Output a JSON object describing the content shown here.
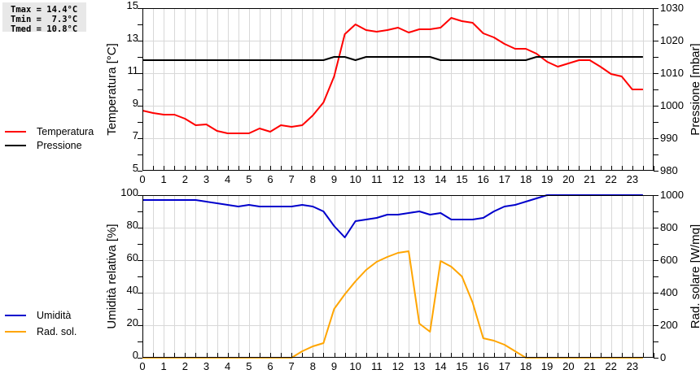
{
  "stats": {
    "tmax": "Tmax = 14.4°C",
    "tmin": "Tmin =  7.3°C",
    "tmed": "Tmed = 10.8°C"
  },
  "legend_top": [
    {
      "label": "Temperatura",
      "color": "#ff0000"
    },
    {
      "label": "Pressione",
      "color": "#000000"
    }
  ],
  "legend_bottom": [
    {
      "label": "Umidità",
      "color": "#0000cc"
    },
    {
      "label": "Rad. sol.",
      "color": "#ffa500"
    }
  ],
  "chart_data": [
    {
      "type": "line",
      "title": "",
      "xlabel": "",
      "ylabel": "Temperatura [°C]",
      "y2label": "Pressione [mbar]",
      "xlim": [
        0,
        24
      ],
      "ylim": [
        5,
        15
      ],
      "y2lim": [
        980,
        1030
      ],
      "x_ticks": [
        0,
        1,
        2,
        3,
        4,
        5,
        6,
        7,
        8,
        9,
        10,
        11,
        12,
        13,
        14,
        15,
        16,
        17,
        18,
        19,
        20,
        21,
        22,
        23
      ],
      "y_ticks": [
        5,
        7,
        9,
        11,
        13,
        15
      ],
      "y2_ticks": [
        980,
        990,
        1000,
        1010,
        1020,
        1030
      ],
      "grid": true,
      "legend_position": "left",
      "x": [
        0,
        0.5,
        1,
        1.5,
        2,
        2.5,
        3,
        3.5,
        4,
        4.5,
        5,
        5.5,
        6,
        6.5,
        7,
        7.5,
        8,
        8.5,
        9,
        9.5,
        10,
        10.5,
        11,
        11.5,
        12,
        12.5,
        13,
        13.5,
        14,
        14.5,
        15,
        15.5,
        16,
        16.5,
        17,
        17.5,
        18,
        18.5,
        19,
        19.5,
        20,
        20.5,
        21,
        21.5,
        22,
        22.5,
        23,
        23.5
      ],
      "series": [
        {
          "name": "Temperatura",
          "axis": "left",
          "color": "#ff0000",
          "values": [
            8.7,
            8.55,
            8.45,
            8.45,
            8.2,
            7.8,
            7.85,
            7.45,
            7.3,
            7.3,
            7.3,
            7.6,
            7.4,
            7.8,
            7.7,
            7.8,
            8.4,
            9.2,
            10.8,
            13.4,
            14.0,
            13.65,
            13.55,
            13.65,
            13.8,
            13.5,
            13.7,
            13.7,
            13.8,
            14.4,
            14.2,
            14.1,
            13.45,
            13.2,
            12.8,
            12.5,
            12.5,
            12.2,
            11.7,
            11.4,
            11.6,
            11.8,
            11.8,
            11.4,
            10.95,
            10.8,
            10.0,
            10.0
          ]
        },
        {
          "name": "Pressione",
          "axis": "right",
          "color": "#000000",
          "values": [
            1014,
            1014,
            1014,
            1014,
            1014,
            1014,
            1014,
            1014,
            1014,
            1014,
            1014,
            1014,
            1014,
            1014,
            1014,
            1014,
            1014,
            1014,
            1015,
            1015,
            1014,
            1015,
            1015,
            1015,
            1015,
            1015,
            1015,
            1015,
            1014,
            1014,
            1014,
            1014,
            1014,
            1014,
            1014,
            1014,
            1014,
            1015,
            1015,
            1015,
            1015,
            1015,
            1015,
            1015,
            1015,
            1015,
            1015,
            1015
          ]
        }
      ]
    },
    {
      "type": "line",
      "title": "",
      "xlabel": "",
      "ylabel": "Umidità relativa [%]",
      "y2label": "Rad. solare [W/mq]",
      "xlim": [
        0,
        24
      ],
      "ylim": [
        0,
        100
      ],
      "y2lim": [
        0,
        1000
      ],
      "x_ticks": [
        0,
        1,
        2,
        3,
        4,
        5,
        6,
        7,
        8,
        9,
        10,
        11,
        12,
        13,
        14,
        15,
        16,
        17,
        18,
        19,
        20,
        21,
        22,
        23
      ],
      "y_ticks": [
        0,
        20,
        40,
        60,
        80,
        100
      ],
      "y2_ticks": [
        0,
        200,
        400,
        600,
        800,
        1000
      ],
      "grid": true,
      "legend_position": "left",
      "x": [
        0,
        0.5,
        1,
        1.5,
        2,
        2.5,
        3,
        3.5,
        4,
        4.5,
        5,
        5.5,
        6,
        6.5,
        7,
        7.5,
        8,
        8.5,
        9,
        9.5,
        10,
        10.5,
        11,
        11.5,
        12,
        12.5,
        13,
        13.5,
        14,
        14.5,
        15,
        15.5,
        16,
        16.5,
        17,
        17.5,
        18,
        18.5,
        19,
        19.5,
        20,
        20.5,
        21,
        21.5,
        22,
        22.5,
        23,
        23.5
      ],
      "series": [
        {
          "name": "Umidità",
          "axis": "left",
          "color": "#0000cc",
          "values": [
            97,
            97,
            97,
            97,
            97,
            97,
            96,
            95,
            94,
            93,
            94,
            93,
            93,
            93,
            93,
            94,
            93,
            90,
            81,
            74,
            84,
            85,
            86,
            88,
            88,
            89,
            90,
            88,
            89,
            85,
            85,
            85,
            86,
            90,
            93,
            94,
            96,
            98,
            100,
            100,
            100,
            100,
            100,
            100,
            100,
            100,
            100,
            100
          ]
        },
        {
          "name": "Rad. sol.",
          "axis": "right",
          "color": "#ffa500",
          "values": [
            0,
            0,
            0,
            0,
            0,
            0,
            0,
            0,
            0,
            0,
            0,
            0,
            0,
            0,
            0,
            40,
            70,
            90,
            300,
            390,
            470,
            540,
            590,
            620,
            645,
            655,
            210,
            160,
            595,
            560,
            500,
            340,
            120,
            105,
            80,
            40,
            0,
            0,
            0,
            0,
            0,
            0,
            0,
            0,
            0,
            0,
            0,
            0
          ]
        }
      ]
    }
  ]
}
